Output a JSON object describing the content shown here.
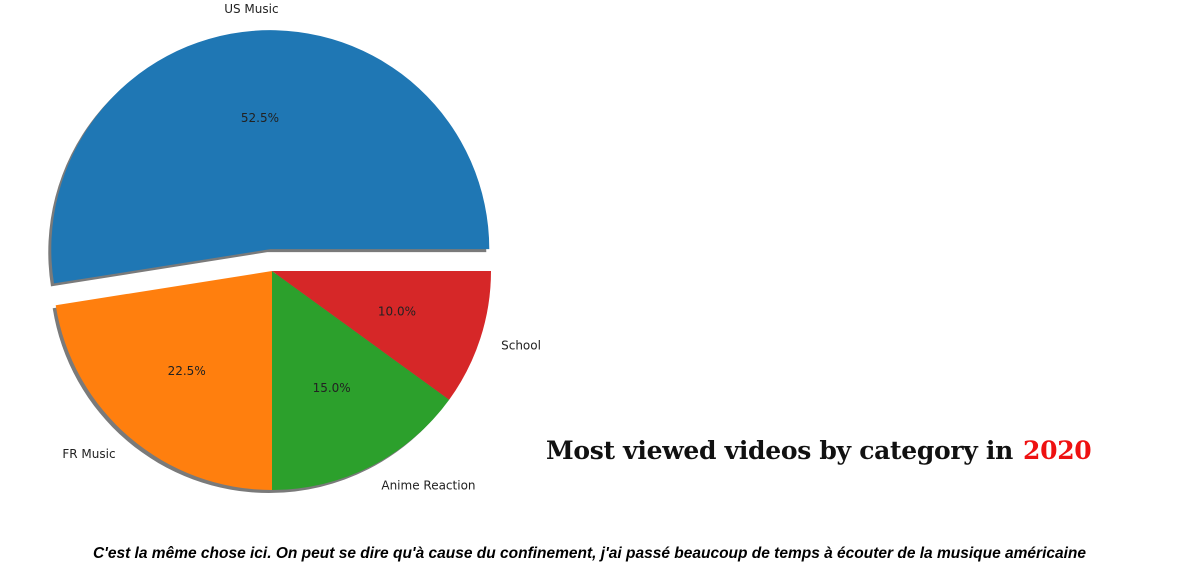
{
  "chart_data": {
    "type": "pie",
    "title": "Most viewed videos by category in",
    "title_year": "2020",
    "categories": [
      "US Music",
      "FR Music",
      "Anime Reaction",
      "School"
    ],
    "values": [
      52.5,
      22.5,
      15.0,
      10.0
    ],
    "value_labels": [
      "52.5%",
      "22.5%",
      "15.0%",
      "10.0%"
    ],
    "colors": [
      "#1f77b4",
      "#ff7f0e",
      "#2ca02c",
      "#d62728"
    ],
    "explode": [
      0.1,
      0,
      0,
      0
    ],
    "shadow": true,
    "accent_color": "#ee1111"
  },
  "caption": "C'est la même chose ici. On peut se dire qu'à cause du confinement, j'ai passé beaucoup de temps à écouter de la musique américaine"
}
